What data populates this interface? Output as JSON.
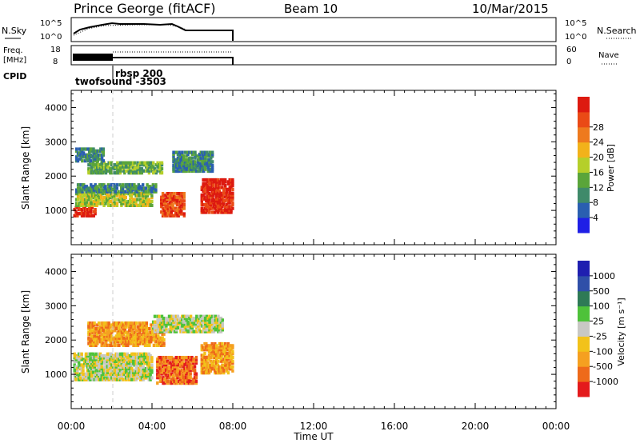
{
  "header": {
    "title": "Prince George (fitACF)",
    "beam": "Beam 10",
    "date": "10/Mar/2015"
  },
  "top_panels": {
    "nsky_label": "N.Sky",
    "nsky_ticks_left": [
      "10^5",
      "10^0"
    ],
    "nsky_ticks_right": [
      "10^5",
      "10^0"
    ],
    "nsearch_label": "N.Search",
    "freq_label_line1": "Freq.",
    "freq_label_line2": "[MHz]",
    "freq_ticks": [
      "18",
      "8"
    ],
    "nave_ticks": [
      "60",
      "0"
    ],
    "nave_label": "Nave",
    "cpid_label": "CPID",
    "cpid_entries": [
      {
        "text": "rbsp  200"
      },
      {
        "text": "twofsound  -3503"
      }
    ]
  },
  "chart_data": [
    {
      "type": "heatmap",
      "name": "Power",
      "ylabel": "Slant Range [km]",
      "xlabel": "",
      "ylim": [
        0,
        4500
      ],
      "yticks": [
        1000,
        2000,
        3000,
        4000
      ],
      "xlim": [
        0,
        24
      ],
      "xtick_labels": [
        "00:00",
        "04:00",
        "08:00",
        "12:00",
        "16:00",
        "20:00",
        "00:00"
      ],
      "colorbar": {
        "label": "Power [dB]",
        "ticks": [
          "4",
          "8",
          "12",
          "16",
          "20",
          "24",
          "28"
        ],
        "colors": [
          "#1f1fe6",
          "#2a5fb0",
          "#3f8a6a",
          "#5aa53a",
          "#b5cf2a",
          "#f2b21a",
          "#ee7a1e",
          "#ea4a16",
          "#dd1a10"
        ]
      },
      "regions": [
        {
          "t": [
            0.1,
            1.2
          ],
          "r": [
            800,
            1100
          ],
          "level": 8
        },
        {
          "t": [
            0.2,
            4.0
          ],
          "r": [
            1100,
            1500
          ],
          "level": 4
        },
        {
          "t": [
            0.2,
            4.2
          ],
          "r": [
            1500,
            1750
          ],
          "level": 2
        },
        {
          "t": [
            0.8,
            4.5
          ],
          "r": [
            2050,
            2400
          ],
          "level": 3
        },
        {
          "t": [
            0.2,
            1.6
          ],
          "r": [
            2400,
            2800
          ],
          "level": 2
        },
        {
          "t": [
            4.4,
            5.6
          ],
          "r": [
            800,
            1500
          ],
          "level": 7
        },
        {
          "t": [
            6.4,
            8.0
          ],
          "r": [
            900,
            1900
          ],
          "level": 8
        },
        {
          "t": [
            5.0,
            7.0
          ],
          "r": [
            2100,
            2700
          ],
          "level": 2
        }
      ]
    },
    {
      "type": "heatmap",
      "name": "Velocity",
      "ylabel": "Slant Range [km]",
      "xlabel": "Time UT",
      "ylim": [
        0,
        4500
      ],
      "yticks": [
        1000,
        2000,
        3000,
        4000
      ],
      "xlim": [
        0,
        24
      ],
      "xtick_labels": [
        "00:00",
        "04:00",
        "08:00",
        "12:00",
        "16:00",
        "20:00",
        "00:00"
      ],
      "colorbar": {
        "label": "Velocity [m s⁻¹]",
        "ticks": [
          "-1000",
          "-500",
          "-100",
          "-25",
          "25",
          "100",
          "500",
          "1000"
        ],
        "colors": [
          "#e41a1c",
          "#ee6a1a",
          "#f5a020",
          "#f2c21a",
          "#c8c8c4",
          "#4ec23a",
          "#2e7a56",
          "#2f4fa8",
          "#1f1fb0"
        ]
      },
      "regions": [
        {
          "t": [
            0.1,
            4.0
          ],
          "r": [
            800,
            1600
          ],
          "level": 4
        },
        {
          "t": [
            0.8,
            4.6
          ],
          "r": [
            1800,
            2500
          ],
          "level": 2
        },
        {
          "t": [
            4.2,
            6.2
          ],
          "r": [
            700,
            1500
          ],
          "level": 1
        },
        {
          "t": [
            6.4,
            8.0
          ],
          "r": [
            1000,
            1900
          ],
          "level": 2
        },
        {
          "t": [
            4.0,
            7.5
          ],
          "r": [
            2200,
            2700
          ],
          "level": 4
        }
      ]
    }
  ]
}
